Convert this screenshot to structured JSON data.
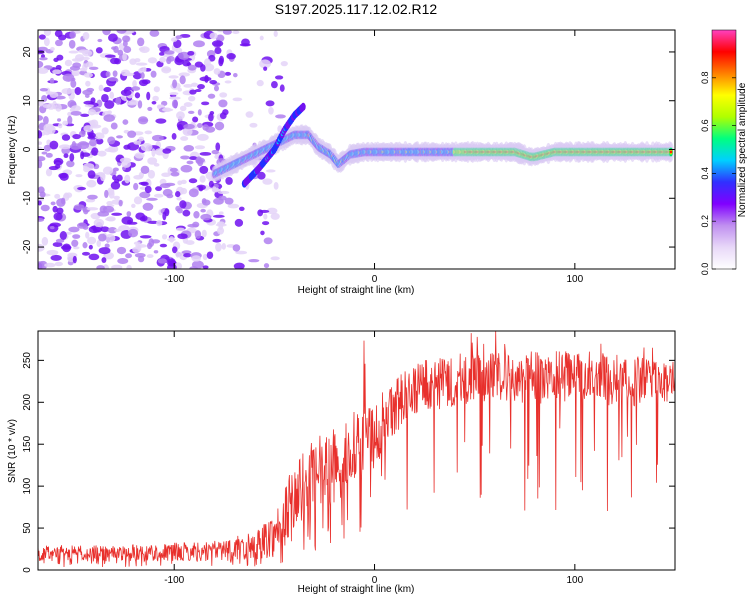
{
  "figure": {
    "title": "S197.2025.117.12.02.R12"
  },
  "chart_data": [
    {
      "type": "heatmap",
      "title": "S197.2025.117.12.02.R12",
      "xlabel": "Height of straight line (km)",
      "ylabel": "Frequency (Hz)",
      "xlim": [
        -168,
        150
      ],
      "ylim": [
        -24.5,
        24.5
      ],
      "x_ticks": [
        -100,
        0,
        100
      ],
      "y_ticks": [
        -20,
        -10,
        0,
        10,
        20
      ],
      "grid": false,
      "noise_region_x": [
        -168,
        -75
      ],
      "ridge": {
        "x": [
          -80,
          -70,
          -60,
          -50,
          -40,
          -33,
          -28,
          -22,
          -18,
          -12,
          -5,
          0,
          10,
          20,
          30,
          40,
          50,
          60,
          70,
          78,
          80,
          85,
          90,
          100,
          110,
          120,
          130,
          140,
          148
        ],
        "y": [
          -5,
          -3,
          -1,
          1,
          3,
          3,
          0.5,
          -1,
          -3,
          -1,
          -0.5,
          -0.5,
          -0.5,
          -0.5,
          -0.5,
          -0.5,
          -0.5,
          -0.5,
          -0.5,
          -1.5,
          -1.5,
          -1,
          -0.5,
          -0.5,
          -0.5,
          -0.5,
          -0.5,
          -0.5,
          -0.5
        ]
      },
      "side_branch": {
        "x": [
          -65,
          -58,
          -50,
          -45,
          -40,
          -35
        ],
        "y": [
          -7,
          -4,
          0,
          4,
          7,
          9
        ]
      },
      "colorbar": {
        "label": "Normalized spectral amplitude",
        "range": [
          0,
          1
        ],
        "ticks": [
          0,
          0.2,
          0.4,
          0.6,
          0.8
        ],
        "tick_labels": [
          "0.0",
          "0.2",
          "0.4",
          "0.6",
          "0.8"
        ],
        "colors": [
          "#ffffff",
          "#e8d8f8",
          "#c090f0",
          "#8000ff",
          "#3030ff",
          "#00d0ff",
          "#00ff80",
          "#b0ff00",
          "#ffff00",
          "#ff8000",
          "#ff0000",
          "#ff40c0"
        ]
      }
    },
    {
      "type": "line",
      "xlabel": "Height of straight line (km)",
      "ylabel": "SNR (10 * v/v)",
      "xlim": [
        -168,
        150
      ],
      "ylim": [
        0,
        285
      ],
      "x_ticks": [
        -100,
        0,
        100
      ],
      "y_ticks": [
        0,
        50,
        100,
        150,
        200,
        250
      ],
      "grid": false,
      "series": [
        {
          "color": "#e8302c",
          "envelope": {
            "x": [
              -168,
              -120,
              -80,
              -60,
              -50,
              -45,
              -40,
              -35,
              -30,
              -25,
              -20,
              -15,
              -10,
              -5,
              0,
              5,
              10,
              15,
              20,
              25,
              30,
              40,
              50,
              60,
              70,
              80,
              90,
              100,
              110,
              120,
              130,
              140,
              150
            ],
            "lower": [
              10,
              10,
              10,
              12,
              15,
              20,
              40,
              50,
              60,
              70,
              80,
              90,
              100,
              110,
              120,
              140,
              160,
              170,
              180,
              190,
              190,
              195,
              200,
              200,
              195,
              195,
              200,
              200,
              200,
              195,
              195,
              200,
              200
            ],
            "upper": [
              30,
              30,
              35,
              45,
              70,
              100,
              130,
              145,
              155,
              165,
              175,
              185,
              190,
              195,
              200,
              215,
              230,
              240,
              250,
              255,
              255,
              258,
              260,
              262,
              262,
              262,
              262,
              262,
              260,
              258,
              255,
              250,
              248
            ]
          }
        }
      ]
    }
  ]
}
